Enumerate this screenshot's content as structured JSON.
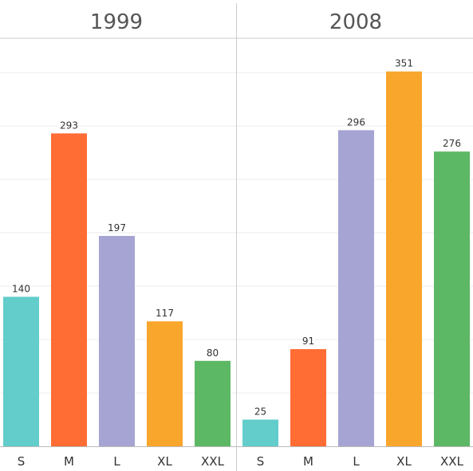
{
  "chart_data": {
    "type": "bar",
    "ylim": [
      0,
      400
    ],
    "grid": true,
    "colors": {
      "S": "#62cdca",
      "M": "#ff6d35",
      "L": "#a5a4d3",
      "XL": "#f9a62d",
      "XXL": "#5cb864"
    },
    "panels": [
      {
        "title": "1999",
        "categories": [
          "S",
          "M",
          "L",
          "XL",
          "XXL"
        ],
        "values": [
          140,
          293,
          197,
          117,
          80
        ]
      },
      {
        "title": "2008",
        "categories": [
          "S",
          "M",
          "L",
          "XL",
          "XXL"
        ],
        "values": [
          25,
          91,
          296,
          351,
          276
        ]
      }
    ]
  }
}
